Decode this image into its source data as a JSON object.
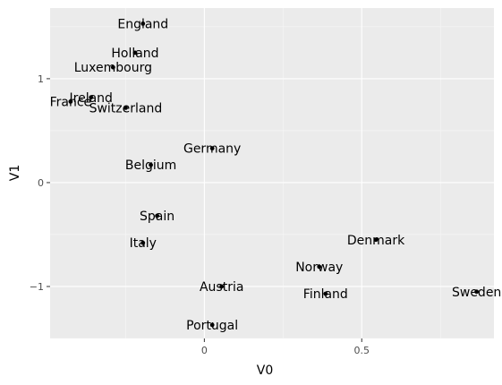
{
  "chart_data": {
    "type": "scatter",
    "title": "",
    "xlabel": "V0",
    "ylabel": "V1",
    "xlim": [
      -0.49,
      0.92
    ],
    "ylim": [
      -1.5,
      1.68
    ],
    "x_ticks": [
      0,
      0.5
    ],
    "x_tick_labels": [
      "0",
      "0.5"
    ],
    "y_ticks": [
      -1,
      0,
      1
    ],
    "y_tick_labels": [
      "−1",
      "0",
      "1"
    ],
    "grid": true,
    "legend": "none",
    "colors": {
      "panel": "#ebebeb",
      "grid_major": "#ffffff",
      "point": "#000000"
    },
    "points": [
      {
        "label": "England",
        "x": -0.195,
        "y": 1.53
      },
      {
        "label": "Holland",
        "x": -0.22,
        "y": 1.25
      },
      {
        "label": "Luxembourg",
        "x": -0.29,
        "y": 1.11
      },
      {
        "label": "Ireland",
        "x": -0.36,
        "y": 0.82
      },
      {
        "label": "France",
        "x": -0.425,
        "y": 0.78
      },
      {
        "label": "Switzerland",
        "x": -0.25,
        "y": 0.72
      },
      {
        "label": "Germany",
        "x": 0.025,
        "y": 0.33
      },
      {
        "label": "Belgium",
        "x": -0.17,
        "y": 0.17
      },
      {
        "label": "Spain",
        "x": -0.15,
        "y": -0.32
      },
      {
        "label": "Italy",
        "x": -0.195,
        "y": -0.58
      },
      {
        "label": "Denmark",
        "x": 0.545,
        "y": -0.55
      },
      {
        "label": "Norway",
        "x": 0.365,
        "y": -0.81
      },
      {
        "label": "Finland",
        "x": 0.385,
        "y": -1.07
      },
      {
        "label": "Sweden",
        "x": 0.865,
        "y": -1.05
      },
      {
        "label": "Austria",
        "x": 0.055,
        "y": -1.0
      },
      {
        "label": "Portugal",
        "x": 0.025,
        "y": -1.37
      }
    ]
  }
}
